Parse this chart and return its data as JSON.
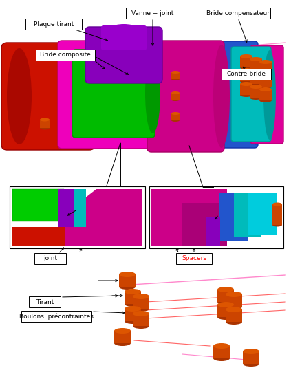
{
  "background_color": "#ffffff",
  "fig_width": 4.23,
  "fig_height": 5.7,
  "dpi": 100,
  "labels": {
    "plaque_tirant": "Plaque tirant",
    "vanne_joint": "Vanne + joint",
    "bride_compensateur": "Bride compensateur",
    "bride_composite": "Bride composite",
    "contre_bride": "Contre-bride",
    "joint": "joint",
    "spacers": "Spacers",
    "tirant": "Tirant",
    "boulons": "Boulons  précontraintes"
  },
  "colors": {
    "red": "#CC1100",
    "magenta": "#CC0088",
    "magenta2": "#EE00BB",
    "green": "#00BB00",
    "purple": "#8800BB",
    "blue": "#2255CC",
    "teal": "#00BBBB",
    "cyan": "#00CCDD",
    "orange": "#CC4400",
    "orange_light": "#DD5500",
    "orange_dark": "#AA3300",
    "pink_line": "#FF88CC",
    "magenta_line": "#FF00FF",
    "red_line": "#FF6666"
  }
}
